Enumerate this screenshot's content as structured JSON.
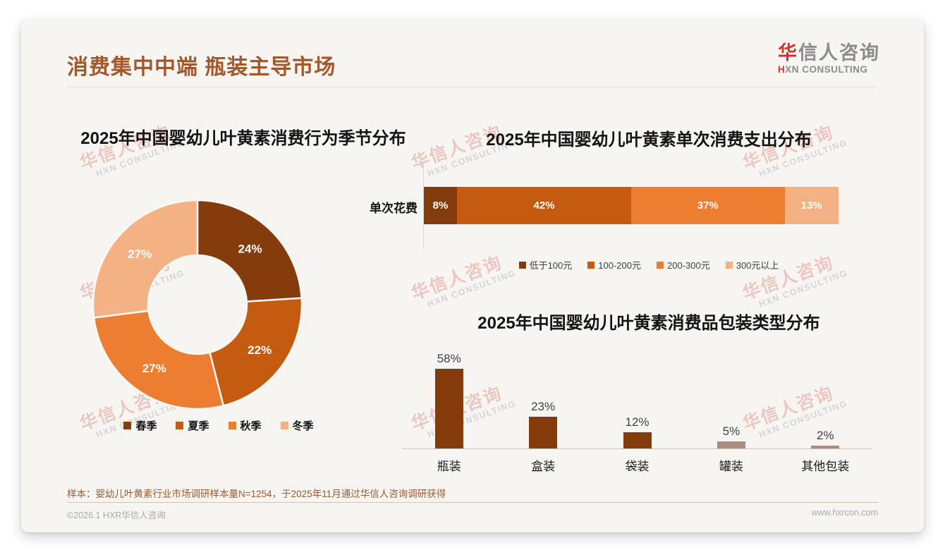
{
  "header": {
    "title": "消费集中中端 瓶装主导市场",
    "logo": {
      "cn_accent": "华",
      "cn_rest": "信人咨询",
      "en_accent": "H",
      "en_rest": "XN CONSULTING"
    }
  },
  "watermark": {
    "cn": "华信人咨询",
    "en": "HXN CONSULTING"
  },
  "colors": {
    "title_brown": "#A3582B",
    "logo_red": "#D0352B",
    "palette": [
      "#843C0C",
      "#C55A11",
      "#ED7D31",
      "#F4B183"
    ],
    "bar_main": "#843C0C",
    "bar_muted": "#AC8B80"
  },
  "chart_data": [
    {
      "type": "pie",
      "subtype": "donut",
      "title": "2025年中国婴幼儿叶黄素消费行为季节分布",
      "categories": [
        "春季",
        "夏季",
        "秋季",
        "冬季"
      ],
      "values": [
        24,
        22,
        27,
        27
      ],
      "unit": "%",
      "colors": [
        "#843C0C",
        "#C55A11",
        "#ED7D31",
        "#F4B183"
      ],
      "legend_position": "bottom",
      "data_labels": "inside-white"
    },
    {
      "type": "bar",
      "subtype": "stacked-horizontal",
      "title": "2025年中国婴幼儿叶黄素单次消费支出分布",
      "row_label": "单次花费",
      "categories": [
        "低于100元",
        "100-200元",
        "200-300元",
        "300元以上"
      ],
      "values": [
        8,
        42,
        37,
        13
      ],
      "unit": "%",
      "colors": [
        "#843C0C",
        "#C55A11",
        "#ED7D31",
        "#F4B183"
      ],
      "legend_position": "bottom",
      "data_labels": "inside-white"
    },
    {
      "type": "bar",
      "subtype": "column",
      "title": "2025年中国婴幼儿叶黄素消费品包装类型分布",
      "categories": [
        "瓶装",
        "盒装",
        "袋装",
        "罐装",
        "其他包装"
      ],
      "values": [
        58,
        23,
        12,
        5,
        2
      ],
      "unit": "%",
      "colors": [
        "#843C0C",
        "#843C0C",
        "#843C0C",
        "#AC8B80",
        "#AC8B80"
      ],
      "data_labels": "above",
      "ylim": [
        0,
        60
      ],
      "grid": false
    }
  ],
  "footer": {
    "note": "样本：婴幼儿叶黄素行业市场调研样本量N=1254，于2025年11月通过华信人咨询调研获得",
    "copyright": "©2026.1 HXR华信人咨询",
    "website": "www.hxrcon.com"
  }
}
